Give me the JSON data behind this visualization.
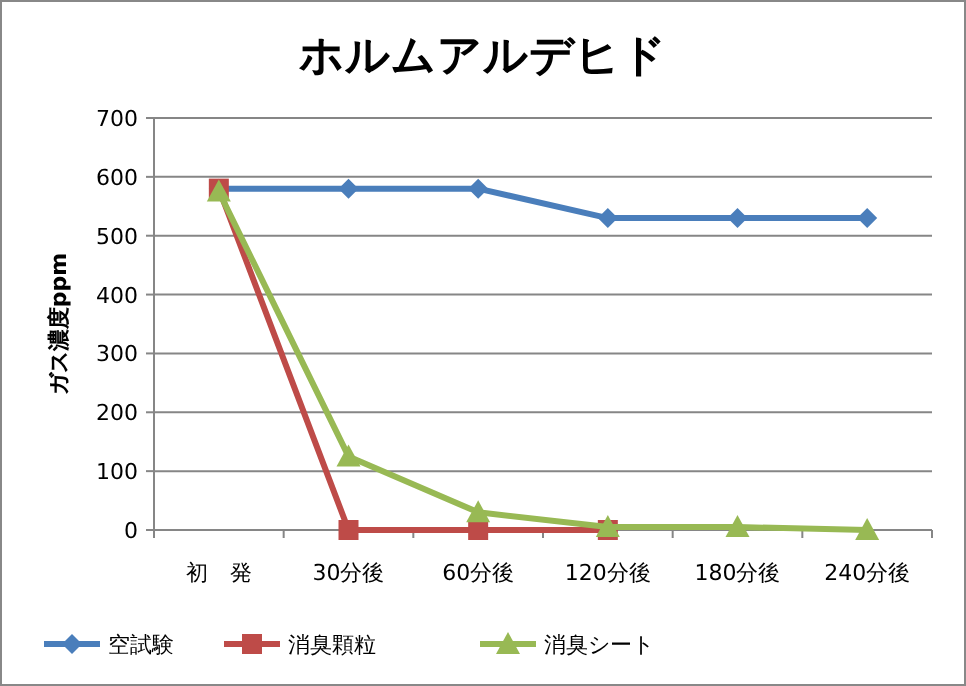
{
  "chart_data": {
    "type": "line",
    "title": "ホルムアルデヒド",
    "ylabel": "ガス濃度ppm",
    "categories": [
      "初　発",
      "30分後",
      "60分後",
      "120分後",
      "180分後",
      "240分後"
    ],
    "ylim": [
      0,
      700
    ],
    "yticks": [
      0,
      100,
      200,
      300,
      400,
      500,
      600,
      700
    ],
    "grid": "y",
    "legend": "bottom",
    "series": [
      {
        "name": "空試験",
        "color": "#4a7ebb",
        "marker": "diamond",
        "values": [
          580,
          580,
          580,
          530,
          530,
          530
        ]
      },
      {
        "name": "消臭顆粒",
        "color": "#be4b48",
        "marker": "square",
        "values": [
          580,
          0,
          0,
          0,
          null,
          null
        ]
      },
      {
        "name": "消臭シート",
        "color": "#98b954",
        "marker": "triangle",
        "values": [
          575,
          125,
          30,
          5,
          5,
          0
        ]
      }
    ]
  }
}
